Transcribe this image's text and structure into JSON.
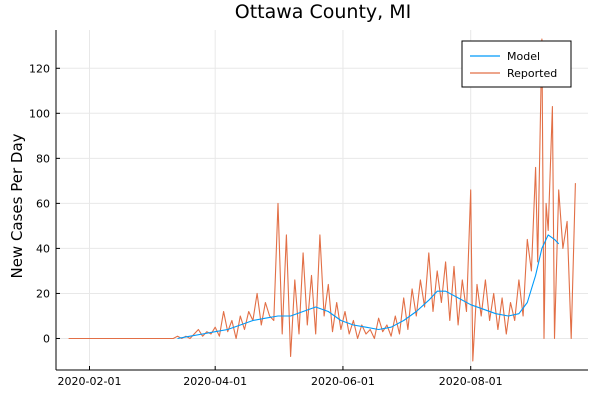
{
  "chart_data": {
    "type": "line",
    "title": "Ottawa County, MI",
    "xlabel": "",
    "ylabel": "New Cases Per Day",
    "x_axis_type": "date",
    "xlim": [
      "2020-01-16",
      "2020-09-26"
    ],
    "ylim": [
      -14,
      137
    ],
    "x_ticks": [
      "2020-02-01",
      "2020-04-01",
      "2020-06-01",
      "2020-08-01"
    ],
    "x_tick_labels": [
      "2020-02-01",
      "2020-04-01",
      "2020-06-01",
      "2020-08-01"
    ],
    "y_ticks": [
      0,
      20,
      40,
      60,
      80,
      100,
      120
    ],
    "y_tick_labels": [
      "0",
      "20",
      "40",
      "60",
      "80",
      "100",
      "120"
    ],
    "grid": true,
    "legend_position": "top-right",
    "series": [
      {
        "name": "Model",
        "color": "#009AFA",
        "points": [
          [
            "2020-03-14",
            0
          ],
          [
            "2020-03-20",
            1
          ],
          [
            "2020-03-26",
            2
          ],
          [
            "2020-04-01",
            3
          ],
          [
            "2020-04-07",
            4
          ],
          [
            "2020-04-13",
            6
          ],
          [
            "2020-04-19",
            8
          ],
          [
            "2020-04-25",
            9
          ],
          [
            "2020-05-01",
            10
          ],
          [
            "2020-05-07",
            10
          ],
          [
            "2020-05-13",
            12
          ],
          [
            "2020-05-19",
            14
          ],
          [
            "2020-05-25",
            12
          ],
          [
            "2020-05-31",
            8
          ],
          [
            "2020-06-06",
            6
          ],
          [
            "2020-06-12",
            5
          ],
          [
            "2020-06-18",
            4
          ],
          [
            "2020-06-24",
            5
          ],
          [
            "2020-06-30",
            8
          ],
          [
            "2020-07-06",
            12
          ],
          [
            "2020-07-12",
            17
          ],
          [
            "2020-07-16",
            21
          ],
          [
            "2020-07-20",
            21
          ],
          [
            "2020-07-26",
            18
          ],
          [
            "2020-08-01",
            15
          ],
          [
            "2020-08-07",
            13
          ],
          [
            "2020-08-13",
            11
          ],
          [
            "2020-08-19",
            10
          ],
          [
            "2020-08-24",
            11
          ],
          [
            "2020-08-28",
            16
          ],
          [
            "2020-09-01",
            28
          ],
          [
            "2020-09-04",
            40
          ],
          [
            "2020-09-07",
            46
          ],
          [
            "2020-09-10",
            44
          ],
          [
            "2020-09-12",
            42
          ]
        ]
      },
      {
        "name": "Reported",
        "color": "#E26F46",
        "points": [
          [
            "2020-01-22",
            0
          ],
          [
            "2020-02-10",
            0
          ],
          [
            "2020-03-01",
            0
          ],
          [
            "2020-03-12",
            0
          ],
          [
            "2020-03-14",
            1
          ],
          [
            "2020-03-16",
            0
          ],
          [
            "2020-03-18",
            1
          ],
          [
            "2020-03-20",
            0
          ],
          [
            "2020-03-22",
            2
          ],
          [
            "2020-03-24",
            4
          ],
          [
            "2020-03-26",
            1
          ],
          [
            "2020-03-28",
            3
          ],
          [
            "2020-03-30",
            2
          ],
          [
            "2020-04-01",
            5
          ],
          [
            "2020-04-03",
            1
          ],
          [
            "2020-04-05",
            12
          ],
          [
            "2020-04-07",
            3
          ],
          [
            "2020-04-09",
            8
          ],
          [
            "2020-04-11",
            0
          ],
          [
            "2020-04-13",
            10
          ],
          [
            "2020-04-15",
            4
          ],
          [
            "2020-04-17",
            12
          ],
          [
            "2020-04-19",
            8
          ],
          [
            "2020-04-21",
            20
          ],
          [
            "2020-04-23",
            6
          ],
          [
            "2020-04-25",
            16
          ],
          [
            "2020-04-27",
            10
          ],
          [
            "2020-04-29",
            8
          ],
          [
            "2020-05-01",
            60
          ],
          [
            "2020-05-03",
            2
          ],
          [
            "2020-05-05",
            46
          ],
          [
            "2020-05-07",
            -8
          ],
          [
            "2020-05-09",
            26
          ],
          [
            "2020-05-11",
            2
          ],
          [
            "2020-05-13",
            38
          ],
          [
            "2020-05-15",
            6
          ],
          [
            "2020-05-17",
            28
          ],
          [
            "2020-05-19",
            2
          ],
          [
            "2020-05-21",
            46
          ],
          [
            "2020-05-23",
            10
          ],
          [
            "2020-05-25",
            24
          ],
          [
            "2020-05-27",
            3
          ],
          [
            "2020-05-29",
            16
          ],
          [
            "2020-05-31",
            4
          ],
          [
            "2020-06-02",
            12
          ],
          [
            "2020-06-04",
            2
          ],
          [
            "2020-06-06",
            8
          ],
          [
            "2020-06-08",
            0
          ],
          [
            "2020-06-10",
            6
          ],
          [
            "2020-06-12",
            2
          ],
          [
            "2020-06-14",
            4
          ],
          [
            "2020-06-16",
            0
          ],
          [
            "2020-06-18",
            9
          ],
          [
            "2020-06-20",
            3
          ],
          [
            "2020-06-22",
            6
          ],
          [
            "2020-06-24",
            1
          ],
          [
            "2020-06-26",
            10
          ],
          [
            "2020-06-28",
            2
          ],
          [
            "2020-06-30",
            18
          ],
          [
            "2020-07-02",
            4
          ],
          [
            "2020-07-04",
            22
          ],
          [
            "2020-07-06",
            10
          ],
          [
            "2020-07-08",
            26
          ],
          [
            "2020-07-10",
            14
          ],
          [
            "2020-07-12",
            38
          ],
          [
            "2020-07-14",
            12
          ],
          [
            "2020-07-16",
            30
          ],
          [
            "2020-07-18",
            16
          ],
          [
            "2020-07-20",
            34
          ],
          [
            "2020-07-22",
            8
          ],
          [
            "2020-07-24",
            32
          ],
          [
            "2020-07-26",
            6
          ],
          [
            "2020-07-28",
            26
          ],
          [
            "2020-07-30",
            12
          ],
          [
            "2020-08-01",
            66
          ],
          [
            "2020-08-02",
            -10
          ],
          [
            "2020-08-04",
            24
          ],
          [
            "2020-08-06",
            10
          ],
          [
            "2020-08-08",
            26
          ],
          [
            "2020-08-10",
            8
          ],
          [
            "2020-08-12",
            20
          ],
          [
            "2020-08-14",
            4
          ],
          [
            "2020-08-16",
            18
          ],
          [
            "2020-08-18",
            2
          ],
          [
            "2020-08-20",
            16
          ],
          [
            "2020-08-22",
            8
          ],
          [
            "2020-08-24",
            26
          ],
          [
            "2020-08-26",
            10
          ],
          [
            "2020-08-28",
            44
          ],
          [
            "2020-08-30",
            30
          ],
          [
            "2020-09-01",
            76
          ],
          [
            "2020-09-02",
            34
          ],
          [
            "2020-09-04",
            133
          ],
          [
            "2020-09-05",
            0
          ],
          [
            "2020-09-06",
            60
          ],
          [
            "2020-09-07",
            48
          ],
          [
            "2020-09-09",
            103
          ],
          [
            "2020-09-10",
            0
          ],
          [
            "2020-09-12",
            66
          ],
          [
            "2020-09-14",
            40
          ],
          [
            "2020-09-16",
            52
          ],
          [
            "2020-09-18",
            0
          ],
          [
            "2020-09-20",
            69
          ]
        ]
      }
    ]
  }
}
